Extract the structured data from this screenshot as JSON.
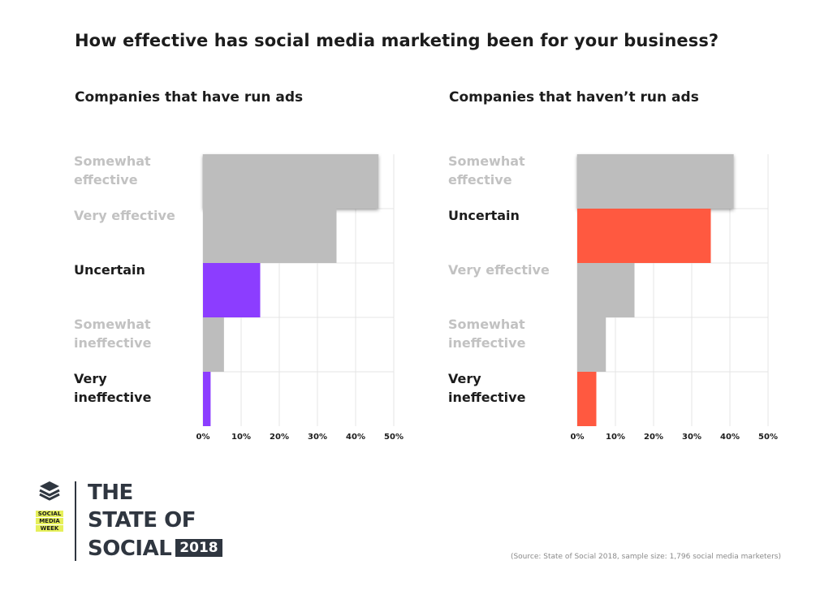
{
  "title": "How effective has social media marketing been for your business?",
  "chart_data": [
    {
      "type": "bar",
      "orientation": "horizontal",
      "title": "Companies that have run ads",
      "categories": [
        "Somewhat effective",
        "Very effective",
        "Uncertain",
        "Somewhat ineffective",
        "Very ineffective"
      ],
      "label_lines": [
        [
          "Somewhat",
          "effective"
        ],
        [
          "Very effective"
        ],
        [
          "Uncertain"
        ],
        [
          "Somewhat",
          "ineffective"
        ],
        [
          "Very",
          "ineffective"
        ]
      ],
      "values": [
        46,
        35,
        15,
        5.5,
        2
      ],
      "highlighted": [
        false,
        false,
        true,
        false,
        true
      ],
      "xlim": [
        0,
        50
      ],
      "xticks": [
        "0%",
        "10%",
        "20%",
        "30%",
        "40%",
        "50%"
      ],
      "grid": true,
      "highlight_color": "#8c3dff",
      "bar_color": "#bdbdbd"
    },
    {
      "type": "bar",
      "orientation": "horizontal",
      "title": "Companies that haven’t run ads",
      "categories": [
        "Somewhat effective",
        "Uncertain",
        "Very effective",
        "Somewhat ineffective",
        "Very ineffective"
      ],
      "label_lines": [
        [
          "Somewhat",
          "effective"
        ],
        [
          "Uncertain"
        ],
        [
          "Very effective"
        ],
        [
          "Somewhat",
          "ineffective"
        ],
        [
          "Very",
          "ineffective"
        ]
      ],
      "values": [
        41,
        35,
        15,
        7.5,
        5
      ],
      "highlighted": [
        false,
        true,
        false,
        false,
        true
      ],
      "xlim": [
        0,
        50
      ],
      "xticks": [
        "0%",
        "10%",
        "20%",
        "30%",
        "40%",
        "50%"
      ],
      "grid": true,
      "highlight_color": "#ff5940",
      "bar_color": "#bdbdbd"
    }
  ],
  "brand": {
    "tag_lines": [
      "SOCIAL",
      "MEDIA",
      "WEEK"
    ],
    "line1": "THE",
    "line2": "STATE OF",
    "line3": "SOCIAL",
    "year": "2018",
    "tag_color": "#e6f05a"
  },
  "source": "(Source: State of Social 2018, sample size: 1,796 social media marketers)"
}
